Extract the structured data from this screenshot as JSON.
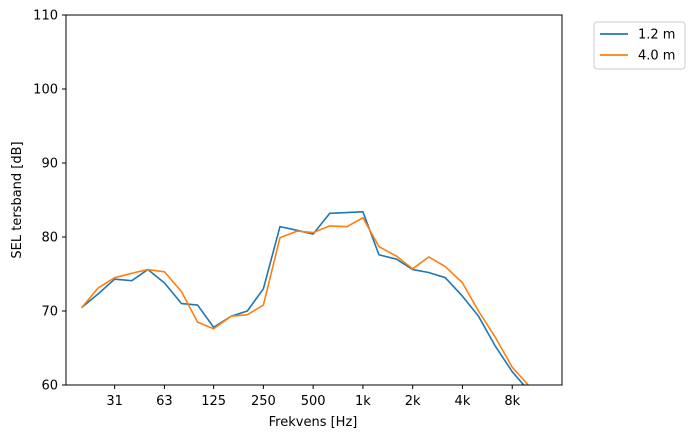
{
  "chart_data": {
    "type": "line",
    "xlabel": "Frekvens [Hz]",
    "ylabel": "SEL tersband [dB]",
    "x_scale": "log",
    "xlim": [
      16,
      16000
    ],
    "ylim": [
      60,
      110
    ],
    "yticks": [
      60,
      70,
      80,
      90,
      100,
      110
    ],
    "xticks": [
      {
        "value": 31.5,
        "label": "31"
      },
      {
        "value": 63,
        "label": "63"
      },
      {
        "value": 125,
        "label": "125"
      },
      {
        "value": 250,
        "label": "250"
      },
      {
        "value": 500,
        "label": "500"
      },
      {
        "value": 1000,
        "label": "1k"
      },
      {
        "value": 2000,
        "label": "2k"
      },
      {
        "value": 4000,
        "label": "4k"
      },
      {
        "value": 8000,
        "label": "8k"
      }
    ],
    "x": [
      20,
      25,
      31.5,
      40,
      50,
      63,
      80,
      100,
      125,
      160,
      200,
      250,
      315,
      400,
      500,
      630,
      800,
      1000,
      1250,
      1600,
      2000,
      2500,
      3150,
      4000,
      5000,
      6300,
      8000,
      10000
    ],
    "series": [
      {
        "name": "1.2 m",
        "color": "#1f77b4",
        "values": [
          70.5,
          72.3,
          74.3,
          74.1,
          75.6,
          73.8,
          71.0,
          70.8,
          67.8,
          69.3,
          70.0,
          73.0,
          81.4,
          80.9,
          80.4,
          83.2,
          83.3,
          83.4,
          77.6,
          77.0,
          75.6,
          75.2,
          74.5,
          72.0,
          69.3,
          65.3,
          61.8,
          59.3
        ]
      },
      {
        "name": "4.0 m",
        "color": "#ff7f0e",
        "values": [
          70.5,
          73.1,
          74.5,
          75.1,
          75.6,
          75.3,
          72.6,
          68.5,
          67.6,
          69.3,
          69.5,
          70.8,
          79.9,
          80.8,
          80.6,
          81.5,
          81.4,
          82.6,
          78.7,
          77.4,
          75.7,
          77.3,
          76.0,
          73.8,
          70.0,
          66.5,
          62.4,
          60.0
        ]
      }
    ],
    "legend_position": "outside-top-right",
    "grid": false
  }
}
